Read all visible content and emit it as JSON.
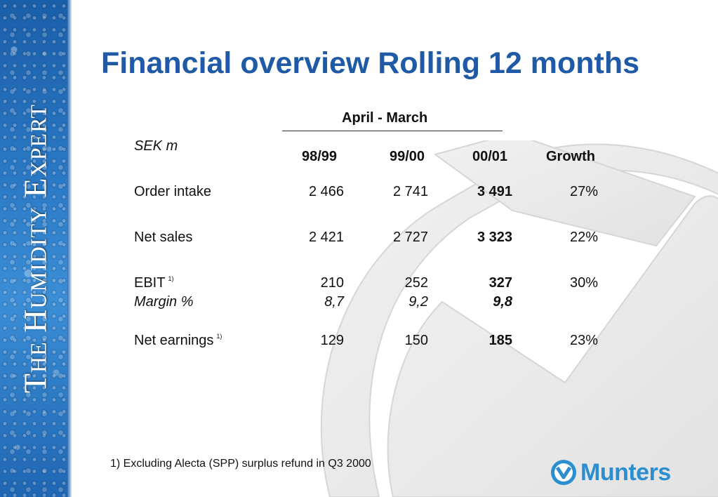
{
  "sidebar": {
    "brand": "The Humidity Expert"
  },
  "title": "Financial overview Rolling 12 months",
  "table": {
    "period_header": "April - March",
    "unit_label": "SEK m",
    "columns": [
      "98/99",
      "99/00",
      "00/01",
      "Growth"
    ],
    "rows": {
      "order_intake": {
        "label": "Order intake",
        "values": [
          "2 466",
          "2 741",
          "3 491"
        ],
        "growth": "27%"
      },
      "net_sales": {
        "label": "Net sales",
        "values": [
          "2 421",
          "2 727",
          "3 323"
        ],
        "growth": "22%"
      },
      "ebit": {
        "label": "EBIT",
        "footnote": "1)",
        "values": [
          "210",
          "252",
          "327"
        ],
        "growth": "30%"
      },
      "margin": {
        "label": "Margin %",
        "values": [
          "8,7",
          "9,2",
          "9,8"
        ]
      },
      "net_earnings": {
        "label": "Net earnings",
        "footnote": "1)",
        "values": [
          "129",
          "150",
          "185"
        ],
        "growth": "23%"
      }
    }
  },
  "footnote": "1) Excluding Alecta (SPP) surplus refund in Q3 2000",
  "logo": {
    "name": "Munters",
    "color": "#2a8ed0",
    "icon": "munters-m-icon"
  },
  "colors": {
    "title": "#1f5aa6",
    "sidebar": "#2a78c4"
  }
}
